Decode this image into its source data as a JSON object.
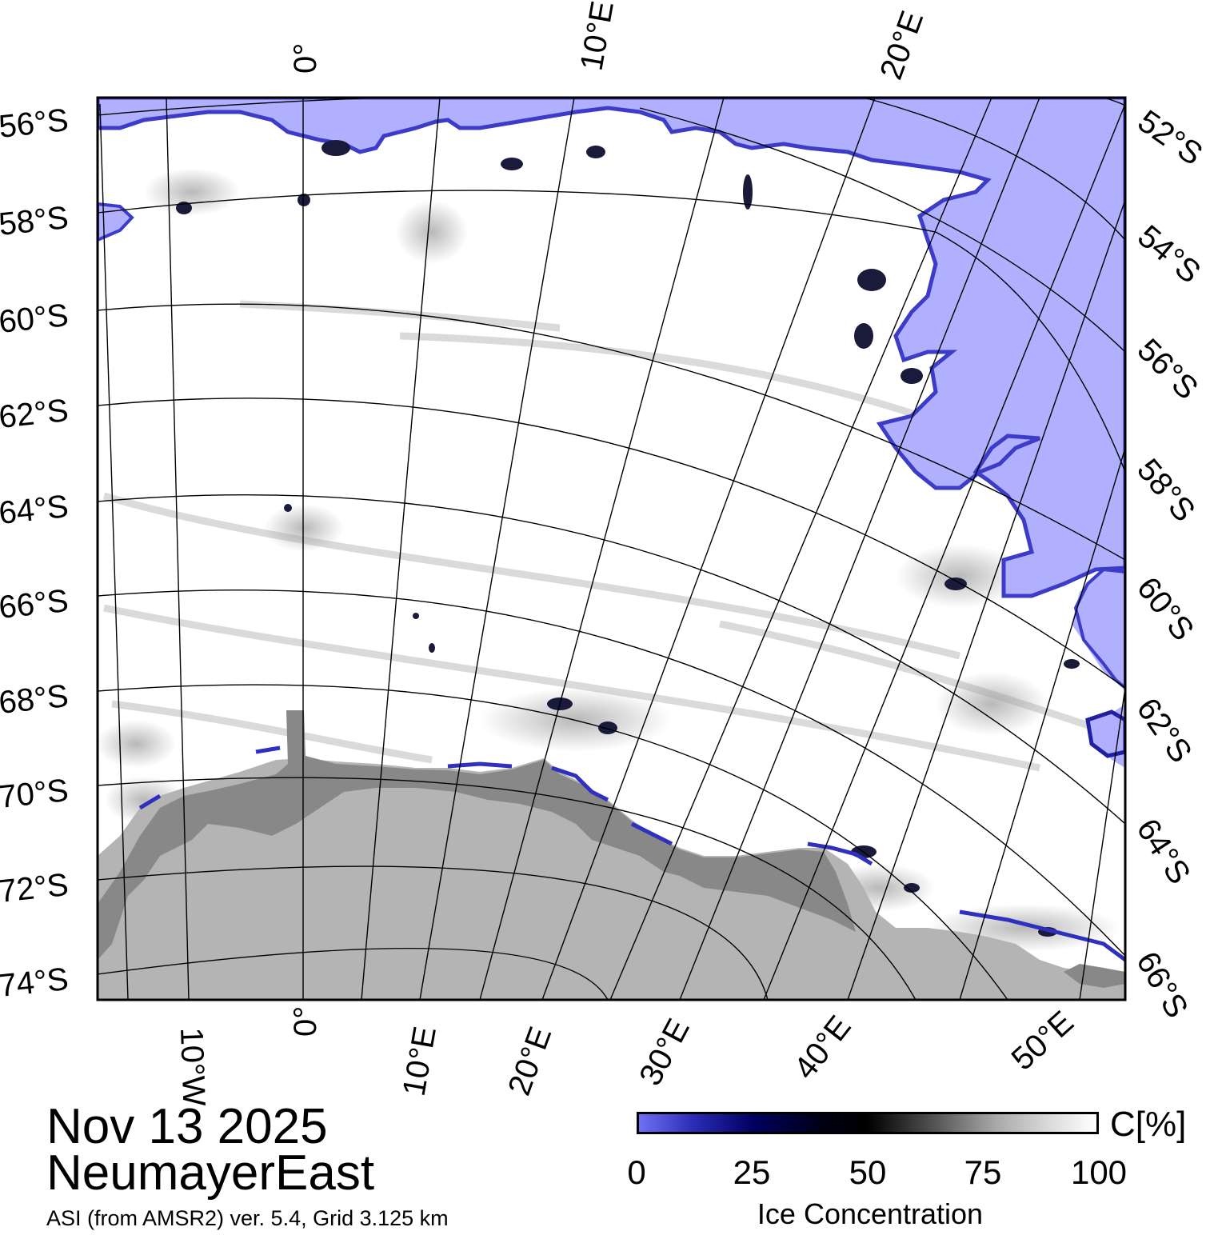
{
  "map": {
    "lat_labels_left": [
      "56°S",
      "58°S",
      "60°S",
      "62°S",
      "64°S",
      "66°S",
      "68°S",
      "70°S",
      "72°S",
      "74°S"
    ],
    "lat_labels_right": [
      "52°S",
      "54°S",
      "56°S",
      "58°S",
      "60°S",
      "62°S",
      "64°S",
      "66°S"
    ],
    "lon_labels_top": [
      "0°",
      "10°E",
      "20°E"
    ],
    "lon_labels_bottom": [
      "10°W",
      "0°",
      "10°E",
      "20°E",
      "30°E",
      "40°E",
      "50°E"
    ],
    "colors": {
      "open_water": "#b0b0ff",
      "ice_edge": "#4040d8",
      "land_ice": "#b4b4b4",
      "ice_shelf": "#888888",
      "high_concentration_ice": "#ffffff"
    }
  },
  "info": {
    "date": "Nov 13 2025",
    "region": "NeumayerEast",
    "source": "ASI (from AMSR2) ver. 5.4,  Grid 3.125 km"
  },
  "colorbar": {
    "unit": "C[%]",
    "ticks": [
      "0",
      "25",
      "50",
      "75",
      "100"
    ],
    "range": [
      0,
      100
    ],
    "title": "Ice Concentration"
  }
}
